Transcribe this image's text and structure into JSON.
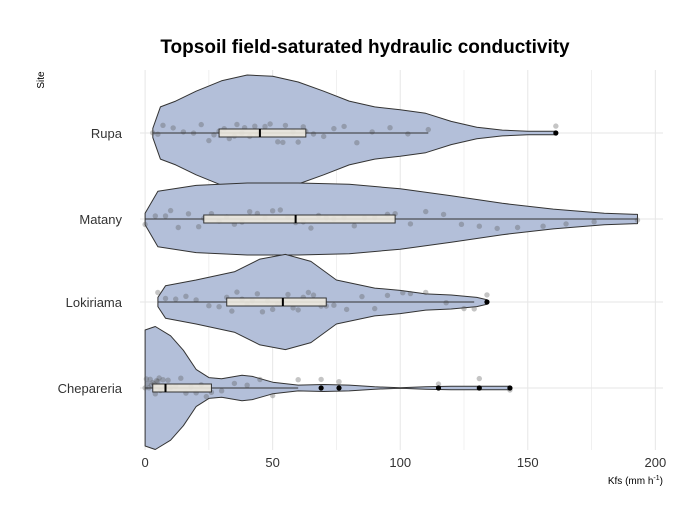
{
  "chart_data": {
    "type": "violin",
    "title": "Topsoil field-saturated hydraulic conductivity",
    "xlabel": "Kfs (mm h",
    "xlabel_superscript": "-1",
    "xlabel_close": ")",
    "ylabel": "Site",
    "orientation": "horizontal",
    "xlim": [
      -2,
      203
    ],
    "x_ticks": [
      0,
      50,
      100,
      150,
      200
    ],
    "grid": true,
    "colors": {
      "violin_fill": "#b3bfd9",
      "violin_stroke": "#333333",
      "box_fill": "#ece8dd",
      "point": "#5a5a5a",
      "outlier": "#000000",
      "grid": "#e6e6e6"
    },
    "series": [
      {
        "site": "Rupa",
        "violin": {
          "min": 3,
          "max": 161,
          "profile": [
            [
              3,
              0.08
            ],
            [
              6,
              0.45
            ],
            [
              12,
              0.55
            ],
            [
              20,
              0.72
            ],
            [
              30,
              0.9
            ],
            [
              40,
              1.0
            ],
            [
              50,
              0.98
            ],
            [
              60,
              0.88
            ],
            [
              70,
              0.72
            ],
            [
              80,
              0.55
            ],
            [
              90,
              0.45
            ],
            [
              100,
              0.4
            ],
            [
              110,
              0.34
            ],
            [
              120,
              0.2
            ],
            [
              130,
              0.1
            ],
            [
              140,
              0.05
            ],
            [
              150,
              0.03
            ],
            [
              161,
              0.03
            ]
          ]
        },
        "box": {
          "q1": 29,
          "median": 45,
          "q3": 63,
          "whisker_low": 3,
          "whisker_high": 111
        },
        "outliers": [
          161
        ],
        "points": [
          3,
          5,
          7,
          11,
          15,
          19,
          22,
          25,
          27,
          29,
          31,
          33,
          35,
          36,
          38,
          39,
          41,
          43,
          44,
          45,
          47,
          49,
          52,
          54,
          55,
          58,
          60,
          62,
          63,
          66,
          70,
          74,
          78,
          83,
          89,
          96,
          103,
          111,
          161
        ]
      },
      {
        "site": "Matany",
        "violin": {
          "min": 0,
          "max": 193,
          "profile": [
            [
              0,
              0.1
            ],
            [
              5,
              0.48
            ],
            [
              20,
              0.58
            ],
            [
              40,
              0.62
            ],
            [
              60,
              0.62
            ],
            [
              80,
              0.6
            ],
            [
              100,
              0.52
            ],
            [
              120,
              0.4
            ],
            [
              140,
              0.27
            ],
            [
              160,
              0.17
            ],
            [
              180,
              0.1
            ],
            [
              193,
              0.08
            ]
          ]
        },
        "box": {
          "q1": 23,
          "median": 59,
          "q3": 98,
          "whisker_low": 0,
          "whisker_high": 193
        },
        "outliers": [],
        "points": [
          0,
          4,
          8,
          10,
          13,
          17,
          21,
          23,
          26,
          29,
          32,
          35,
          38,
          41,
          44,
          47,
          50,
          53,
          56,
          59,
          62,
          65,
          68,
          71,
          74,
          78,
          82,
          86,
          90,
          95,
          98,
          104,
          110,
          117,
          124,
          131,
          138,
          146,
          156,
          165,
          176,
          193
        ]
      },
      {
        "site": "Lokiriama",
        "violin": {
          "min": 5,
          "max": 134,
          "profile": [
            [
              5,
              0.08
            ],
            [
              8,
              0.28
            ],
            [
              20,
              0.38
            ],
            [
              35,
              0.52
            ],
            [
              45,
              0.74
            ],
            [
              55,
              0.82
            ],
            [
              65,
              0.7
            ],
            [
              75,
              0.38
            ],
            [
              90,
              0.24
            ],
            [
              100,
              0.2
            ],
            [
              110,
              0.14
            ],
            [
              120,
              0.12
            ],
            [
              130,
              0.08
            ],
            [
              134,
              0.04
            ]
          ]
        },
        "box": {
          "q1": 32,
          "median": 54,
          "q3": 71,
          "whisker_low": 5,
          "whisker_high": 129
        },
        "outliers": [
          134
        ],
        "points": [
          5,
          8,
          12,
          16,
          20,
          25,
          29,
          32,
          34,
          36,
          38,
          40,
          42,
          44,
          46,
          48,
          50,
          52,
          54,
          56,
          58,
          60,
          62,
          64,
          66,
          69,
          71,
          74,
          79,
          85,
          90,
          95,
          101,
          104,
          110,
          118,
          125,
          129,
          134
        ]
      },
      {
        "site": "Chepareria",
        "violin": {
          "min": 0,
          "max": 143,
          "profile": [
            [
              0,
              1.0
            ],
            [
              4,
              1.06
            ],
            [
              10,
              0.9
            ],
            [
              15,
              0.65
            ],
            [
              20,
              0.32
            ],
            [
              25,
              0.18
            ],
            [
              30,
              0.16
            ],
            [
              38,
              0.22
            ],
            [
              42,
              0.2
            ],
            [
              50,
              0.1
            ],
            [
              60,
              0.05
            ],
            [
              70,
              0.06
            ],
            [
              80,
              0.05
            ],
            [
              90,
              0.02
            ],
            [
              100,
              0.004
            ],
            [
              110,
              0.02
            ],
            [
              120,
              0.03
            ],
            [
              130,
              0.03
            ],
            [
              143,
              0.03
            ]
          ]
        },
        "box": {
          "q1": 3,
          "median": 8,
          "q3": 26,
          "whisker_low": 0,
          "whisker_high": 60
        },
        "outliers": [
          69,
          76,
          115,
          131,
          143
        ],
        "points": [
          0,
          0.5,
          1,
          1.5,
          2,
          2.5,
          3,
          3.5,
          4,
          4.5,
          5,
          5.5,
          6,
          7,
          8,
          9,
          10,
          12,
          14,
          16,
          18,
          20,
          22,
          24,
          26,
          30,
          35,
          40,
          45,
          50,
          60,
          69,
          76,
          115,
          131,
          143
        ]
      }
    ]
  }
}
